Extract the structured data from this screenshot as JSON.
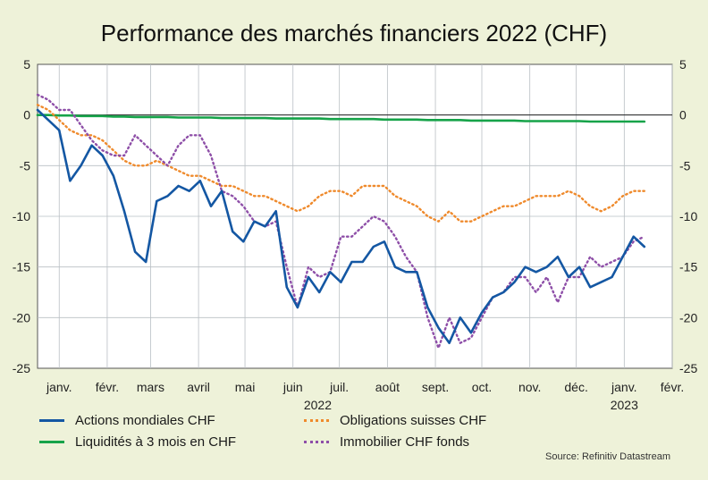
{
  "chart_data": {
    "type": "line",
    "title": "Performance des marchés financiers 2022 (CHF)",
    "ylim": [
      -25,
      5
    ],
    "yticks": [
      5,
      0,
      -5,
      -10,
      -15,
      -20,
      -25
    ],
    "x_range": [
      "2022-01-01",
      "2023-02-15"
    ],
    "x_ticks": [
      {
        "label": "janv.",
        "date": "2022-01-15"
      },
      {
        "label": "févr.",
        "date": "2022-02-15"
      },
      {
        "label": "mars",
        "date": "2022-03-15"
      },
      {
        "label": "avril",
        "date": "2022-04-15"
      },
      {
        "label": "mai",
        "date": "2022-05-15"
      },
      {
        "label": "juin",
        "date": "2022-06-15"
      },
      {
        "label": "juil.",
        "date": "2022-07-15"
      },
      {
        "label": "août",
        "date": "2022-08-15"
      },
      {
        "label": "sept.",
        "date": "2022-09-15"
      },
      {
        "label": "oct.",
        "date": "2022-10-15"
      },
      {
        "label": "nov.",
        "date": "2022-11-15"
      },
      {
        "label": "déc.",
        "date": "2022-12-15"
      },
      {
        "label": "janv.",
        "date": "2023-01-15"
      },
      {
        "label": "févr.",
        "date": "2023-02-15"
      }
    ],
    "year_labels": [
      {
        "label": "2022",
        "date": "2022-07-01"
      },
      {
        "label": "2023",
        "date": "2023-01-15"
      }
    ],
    "x": [
      "2022-01-01",
      "2022-01-08",
      "2022-01-15",
      "2022-01-22",
      "2022-01-29",
      "2022-02-05",
      "2022-02-12",
      "2022-02-19",
      "2022-02-26",
      "2022-03-05",
      "2022-03-12",
      "2022-03-19",
      "2022-03-26",
      "2022-04-02",
      "2022-04-09",
      "2022-04-16",
      "2022-04-23",
      "2022-04-30",
      "2022-05-07",
      "2022-05-14",
      "2022-05-21",
      "2022-05-28",
      "2022-06-04",
      "2022-06-11",
      "2022-06-18",
      "2022-06-25",
      "2022-07-02",
      "2022-07-09",
      "2022-07-16",
      "2022-07-23",
      "2022-07-30",
      "2022-08-06",
      "2022-08-13",
      "2022-08-20",
      "2022-08-27",
      "2022-09-03",
      "2022-09-10",
      "2022-09-17",
      "2022-09-24",
      "2022-10-01",
      "2022-10-08",
      "2022-10-15",
      "2022-10-22",
      "2022-10-29",
      "2022-11-05",
      "2022-11-12",
      "2022-11-19",
      "2022-11-26",
      "2022-12-03",
      "2022-12-10",
      "2022-12-17",
      "2022-12-24",
      "2022-12-31",
      "2023-01-07",
      "2023-01-14",
      "2023-01-21",
      "2023-01-28"
    ],
    "series": [
      {
        "name": "Actions mondiales CHF",
        "color": "#1457a3",
        "dash": "solid",
        "values": [
          0.5,
          -0.5,
          -1.5,
          -6.5,
          -5,
          -3,
          -4,
          -6,
          -9.5,
          -13.5,
          -14.5,
          -8.5,
          -8,
          -7,
          -7.5,
          -6.5,
          -9,
          -7.5,
          -11.5,
          -12.5,
          -10.5,
          -11,
          -9.5,
          -17,
          -19,
          -16,
          -17.5,
          -15.5,
          -16.5,
          -14.5,
          -14.5,
          -13,
          -12.5,
          -15,
          -15.5,
          -15.5,
          -19,
          -21,
          -22.5,
          -20,
          -21.5,
          -19.5,
          -18,
          -17.5,
          -16.5,
          -15,
          -15.5,
          -15,
          -14,
          -16,
          -15,
          -17,
          -16.5,
          -16,
          -14,
          -12,
          -13
        ]
      },
      {
        "name": "Liquidités à 3 mois en CHF",
        "color": "#16a349",
        "dash": "solid",
        "values": [
          0,
          0,
          -0.05,
          -0.05,
          -0.1,
          -0.1,
          -0.1,
          -0.15,
          -0.15,
          -0.2,
          -0.2,
          -0.2,
          -0.2,
          -0.25,
          -0.25,
          -0.25,
          -0.25,
          -0.3,
          -0.3,
          -0.3,
          -0.3,
          -0.3,
          -0.35,
          -0.35,
          -0.35,
          -0.35,
          -0.35,
          -0.4,
          -0.4,
          -0.4,
          -0.4,
          -0.4,
          -0.45,
          -0.45,
          -0.45,
          -0.45,
          -0.5,
          -0.5,
          -0.5,
          -0.5,
          -0.55,
          -0.55,
          -0.55,
          -0.55,
          -0.55,
          -0.6,
          -0.6,
          -0.6,
          -0.6,
          -0.6,
          -0.6,
          -0.65,
          -0.65,
          -0.65,
          -0.65,
          -0.65,
          -0.65
        ]
      },
      {
        "name": "Obligations suisses CHF",
        "color": "#ef8a2c",
        "dash": "dotted",
        "values": [
          1,
          0.5,
          -0.5,
          -1.5,
          -2,
          -2,
          -2.5,
          -3.5,
          -4.5,
          -5,
          -5,
          -4.5,
          -5,
          -5.5,
          -6,
          -6,
          -6.5,
          -7,
          -7,
          -7.5,
          -8,
          -8,
          -8.5,
          -9,
          -9.5,
          -9,
          -8,
          -7.5,
          -7.5,
          -8,
          -7,
          -7,
          -7,
          -8,
          -8.5,
          -9,
          -10,
          -10.5,
          -9.5,
          -10.5,
          -10.5,
          -10,
          -9.5,
          -9,
          -9,
          -8.5,
          -8,
          -8,
          -8,
          -7.5,
          -8,
          -9,
          -9.5,
          -9,
          -8,
          -7.5,
          -7.5
        ]
      },
      {
        "name": "Immobilier CHF fonds",
        "color": "#8e4fa8",
        "dash": "dotted",
        "values": [
          2,
          1.5,
          0.5,
          0.5,
          -1,
          -2.5,
          -3.5,
          -4,
          -4,
          -2,
          -3,
          -4,
          -5,
          -3,
          -2,
          -2,
          -4,
          -7.5,
          -8,
          -9,
          -10.5,
          -11,
          -10.5,
          -15,
          -19,
          -15,
          -16,
          -15.5,
          -12,
          -12,
          -11,
          -10,
          -10.5,
          -12,
          -14,
          -15.5,
          -20,
          -23,
          -20,
          -22.5,
          -22,
          -20,
          -18,
          -17.5,
          -16,
          -16,
          -17.5,
          -16,
          -18.5,
          -16,
          -16,
          -14,
          -15,
          -14.5,
          -14,
          -12.5,
          -12
        ]
      }
    ]
  },
  "legend_items": [
    "Actions mondiales CHF",
    "Liquidités à 3 mois en CHF",
    "Obligations suisses CHF",
    "Immobilier CHF fonds"
  ],
  "source": "Source: Refinitiv Datastream"
}
